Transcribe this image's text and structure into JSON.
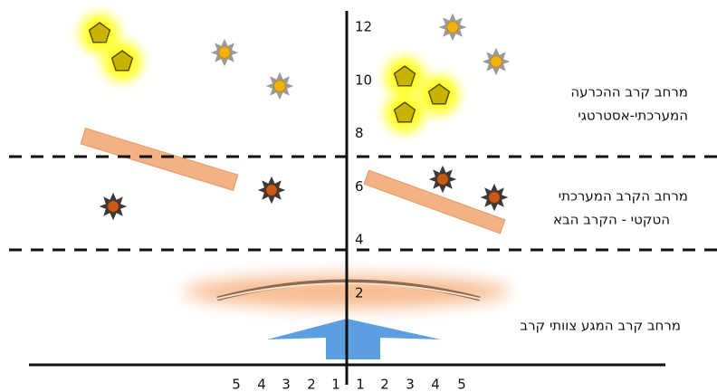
{
  "y_axis": {
    "labels": [
      "12",
      "10",
      "8",
      "6",
      "4",
      "2"
    ]
  },
  "x_axis": {
    "labels": [
      "5",
      "4",
      "3",
      "2",
      "1",
      "1",
      "2",
      "3",
      "4",
      "5"
    ]
  },
  "zones": [
    {
      "lines": [
        "מרחב קרב ההכרעה",
        "המערכתי-אסטרטגי"
      ]
    },
    {
      "lines": [
        "מרחב הקרב המערכתי",
        "הטקטי - הקרב הבא"
      ]
    },
    {
      "lines": [
        "מרחב קרב המגע צוותי קרב"
      ]
    }
  ]
}
